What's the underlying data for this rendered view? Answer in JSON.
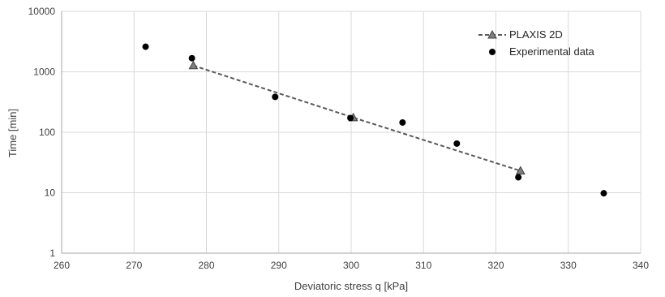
{
  "chart_data": {
    "type": "scatter",
    "title": "",
    "xlabel": "Deviatoric stress q [kPa]",
    "ylabel": "Time [min]",
    "xlim": [
      260,
      340
    ],
    "ylim": [
      1,
      10000
    ],
    "y_scale": "log",
    "x_ticks": [
      "260",
      "270",
      "280",
      "290",
      "300",
      "310",
      "320",
      "330",
      "340"
    ],
    "y_ticks": [
      "1",
      "10",
      "100",
      "1000",
      "10000"
    ],
    "grid": true,
    "legend_position": "top-right",
    "series": [
      {
        "name": "PLAXIS 2D",
        "kind": "dashed-line-triangle-markers",
        "color": "#595959",
        "marker_fill": "#7f7f7f",
        "points": [
          {
            "x": 278.2,
            "y": 1270
          },
          {
            "x": 300.3,
            "y": 175
          },
          {
            "x": 323.4,
            "y": 23
          }
        ]
      },
      {
        "name": "Experimental data",
        "kind": "circle-markers",
        "color": "#000000",
        "points": [
          {
            "x": 271.6,
            "y": 2600
          },
          {
            "x": 278.0,
            "y": 1680
          },
          {
            "x": 289.5,
            "y": 385
          },
          {
            "x": 299.9,
            "y": 172
          },
          {
            "x": 307.1,
            "y": 145
          },
          {
            "x": 314.6,
            "y": 65
          },
          {
            "x": 323.1,
            "y": 18
          },
          {
            "x": 334.9,
            "y": 9.8
          }
        ]
      }
    ]
  }
}
